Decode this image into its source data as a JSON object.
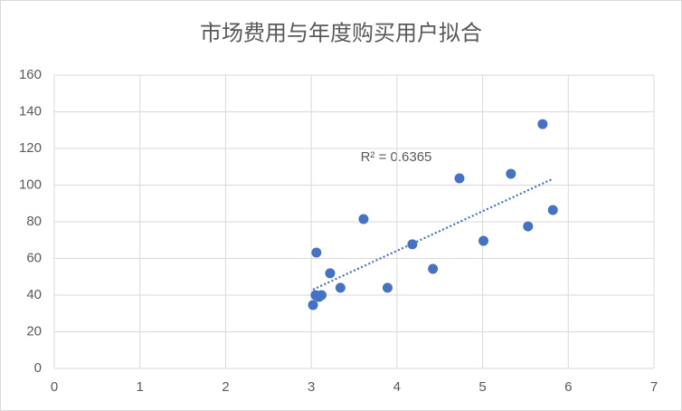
{
  "chart_data": {
    "type": "scatter",
    "title": "市场费用与年度购买用户拟合",
    "x": [
      3.02,
      3.05,
      3.06,
      3.09,
      3.12,
      3.22,
      3.34,
      3.61,
      3.89,
      4.18,
      4.42,
      4.73,
      5.01,
      5.33,
      5.53,
      5.7,
      5.82
    ],
    "values": [
      34.6,
      40,
      63.2,
      39,
      40,
      51.9,
      44,
      81.5,
      44,
      67.7,
      54.3,
      103.7,
      69.6,
      106.2,
      77.5,
      133.3,
      86.4
    ],
    "color": "#4472c4",
    "xlim": [
      0,
      7
    ],
    "xticks": [
      0,
      1,
      2,
      3,
      4,
      5,
      6,
      7
    ],
    "ylim": [
      0,
      160
    ],
    "yticks": [
      0,
      20,
      40,
      60,
      80,
      100,
      120,
      140,
      160
    ],
    "grid": true,
    "trendline": "linear",
    "annotation": "R² = 0.6365"
  }
}
